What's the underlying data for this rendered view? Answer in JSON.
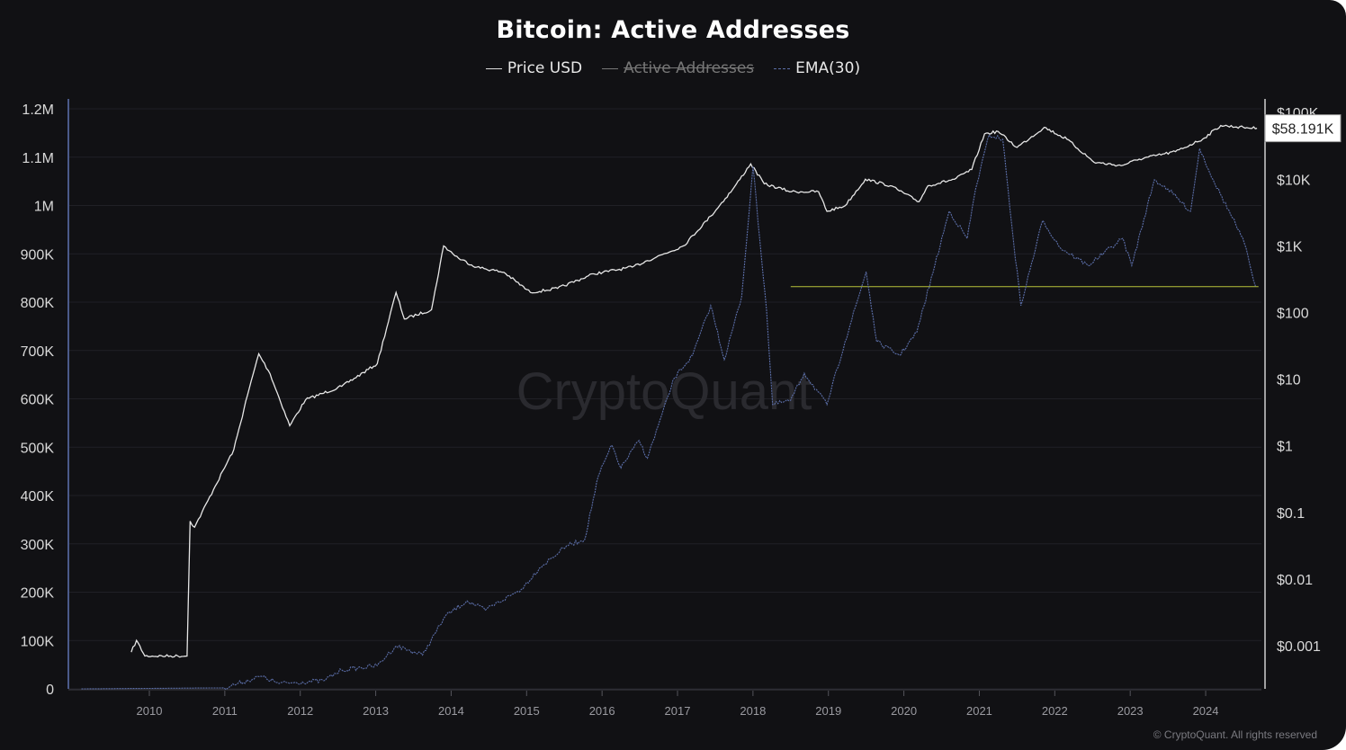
{
  "chart_data": {
    "type": "line",
    "title": "Bitcoin: Active Addresses",
    "legend": [
      {
        "name": "Price USD",
        "color": "#e6e6e6",
        "hidden": false
      },
      {
        "name": "Active Addresses",
        "color": "#8a8a8a",
        "hidden": true
      },
      {
        "name": "EMA(30)",
        "color": "#5b6ea8",
        "hidden": false
      }
    ],
    "legend_placement": "top-center",
    "grid": true,
    "x_ticks": [
      "2010",
      "2011",
      "2012",
      "2013",
      "2014",
      "2015",
      "2016",
      "2017",
      "2018",
      "2019",
      "2020",
      "2021",
      "2022",
      "2023",
      "2024"
    ],
    "xlim": [
      2009.1,
      2024.8
    ],
    "y_left": {
      "ticks": [
        "0",
        "100K",
        "200K",
        "300K",
        "400K",
        "500K",
        "600K",
        "700K",
        "800K",
        "900K",
        "1M",
        "1.1M",
        "1.2M"
      ],
      "range": [
        0,
        1200000
      ]
    },
    "y_right": {
      "scale": "log",
      "ticks": [
        "$0.001",
        "$0.01",
        "$0.1",
        "$1",
        "$10",
        "$100",
        "$1K",
        "$10K",
        "$100K"
      ],
      "range": [
        0.0002,
        100000
      ]
    },
    "price_label": "$58.191K",
    "watermark": "CryptoQuant",
    "copyright": "© CryptoQuant. All rights reserved",
    "series": [
      {
        "name": "Price USD",
        "axis": "right",
        "color": "#e6e6e6",
        "x": [
          2009.76,
          2009.83,
          2009.94,
          2010.5,
          2010.54,
          2010.6,
          2010.85,
          2011.12,
          2011.3,
          2011.45,
          2011.6,
          2011.86,
          2012.07,
          2012.55,
          2013.02,
          2013.27,
          2013.38,
          2013.74,
          2013.9,
          2014.1,
          2014.34,
          2014.7,
          2015.05,
          2015.41,
          2015.89,
          2016.4,
          2016.6,
          2017.08,
          2017.44,
          2017.73,
          2017.97,
          2018.15,
          2018.51,
          2018.87,
          2018.98,
          2019.22,
          2019.49,
          2019.82,
          2020.2,
          2020.32,
          2020.67,
          2020.9,
          2021.07,
          2021.25,
          2021.5,
          2021.86,
          2022.16,
          2022.52,
          2022.88,
          2023.12,
          2023.6,
          2023.96,
          2024.2,
          2024.5,
          2024.68
        ],
        "y": [
          0.0008,
          0.0012,
          0.0007,
          0.0007,
          0.074,
          0.06,
          0.22,
          0.88,
          5.7,
          24,
          12,
          2.0,
          4.9,
          7.8,
          17,
          200,
          80,
          110,
          1000,
          650,
          480,
          400,
          200,
          230,
          380,
          480,
          600,
          1000,
          2800,
          7000,
          17000,
          8500,
          6500,
          6500,
          3300,
          4000,
          10000,
          8000,
          4600,
          8000,
          10000,
          14000,
          48000,
          52000,
          30000,
          60000,
          40000,
          18000,
          16000,
          20000,
          26000,
          40000,
          64000,
          60000,
          58191
        ]
      },
      {
        "name": "EMA(30)",
        "axis": "left",
        "color": "#5b6ea8",
        "x": [
          2009.1,
          2010.99,
          2011.48,
          2011.72,
          2012.31,
          2012.55,
          2013.02,
          2013.27,
          2013.62,
          2013.92,
          2014.21,
          2014.45,
          2014.93,
          2015.17,
          2015.53,
          2015.77,
          2015.95,
          2016.13,
          2016.25,
          2016.49,
          2016.6,
          2016.96,
          2017.2,
          2017.44,
          2017.62,
          2017.85,
          2018.0,
          2018.18,
          2018.26,
          2018.5,
          2018.68,
          2018.98,
          2019.22,
          2019.4,
          2019.5,
          2019.64,
          2019.94,
          2020.17,
          2020.41,
          2020.6,
          2020.84,
          2020.95,
          2021.13,
          2021.31,
          2021.43,
          2021.55,
          2021.84,
          2022.07,
          2022.44,
          2022.9,
          2023.02,
          2023.32,
          2023.5,
          2023.8,
          2023.92,
          2024.1,
          2024.4,
          2024.51,
          2024.66
        ],
        "y": [
          0,
          2000,
          26000,
          11000,
          17000,
          39000,
          48000,
          89000,
          70000,
          150000,
          182000,
          163000,
          206000,
          250000,
          296000,
          309000,
          440000,
          504000,
          457000,
          514000,
          477000,
          644000,
          690000,
          793000,
          681000,
          811000,
          1081000,
          783000,
          588000,
          597000,
          653000,
          588000,
          718000,
          811000,
          863000,
          718000,
          690000,
          737000,
          876000,
          988000,
          932000,
          1034000,
          1146000,
          1137000,
          960000,
          793000,
          969000,
          913000,
          876000,
          932000,
          876000,
          1053000,
          1034000,
          988000,
          1118000,
          1053000,
          960000,
          923000,
          833000
        ]
      }
    ],
    "reference_line": {
      "axis": "left",
      "y": 832000,
      "x": [
        2018.5,
        2024.7
      ],
      "color": "#b7c23a"
    }
  }
}
